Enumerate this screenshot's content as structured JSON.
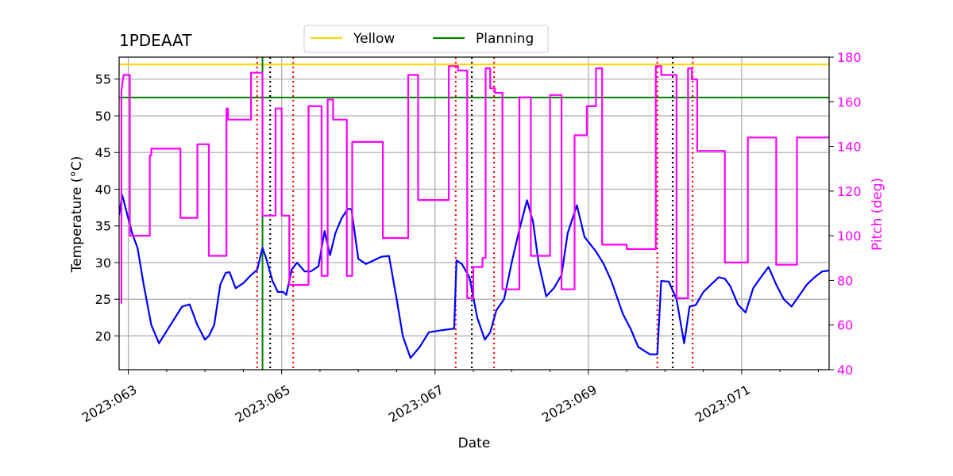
{
  "chart_data": {
    "type": "line",
    "title": "1PDEAAT",
    "xlabel": "Date",
    "ylabel_left": "Temperature ($^\\circ$C)",
    "ylabel_left_display": "Temperature (°C)",
    "ylabel_right": "Pitch (deg)",
    "xlim": [
      62.88,
      72.14
    ],
    "ylim_left": [
      15.4,
      58.0
    ],
    "ylim_right": [
      40,
      180
    ],
    "x_ticks": [
      {
        "value": 63,
        "label": "2023:063"
      },
      {
        "value": 65,
        "label": "2023:065"
      },
      {
        "value": 67,
        "label": "2023:067"
      },
      {
        "value": 69,
        "label": "2023:069"
      },
      {
        "value": 71,
        "label": "2023:071"
      }
    ],
    "y_ticks_left": [
      20,
      25,
      30,
      35,
      40,
      45,
      50,
      55
    ],
    "y_ticks_right": [
      40,
      60,
      80,
      100,
      120,
      140,
      160,
      180
    ],
    "legend": {
      "placement": "top-center",
      "entries": [
        {
          "label": "Yellow",
          "color": "#ffd700"
        },
        {
          "label": "Planning",
          "color": "#008000"
        }
      ]
    },
    "hlines": [
      {
        "name": "Yellow",
        "y": 57.0,
        "color": "#ffd700"
      },
      {
        "name": "Planning",
        "y": 52.5,
        "color": "#008000"
      }
    ],
    "vline_now": {
      "x": 64.75,
      "color": "#008000"
    },
    "vlines_red_dotted": [
      64.68,
      65.15,
      67.27,
      67.77,
      69.9,
      70.36
    ],
    "vlines_black_dotted": [
      64.85,
      67.48,
      70.1
    ],
    "series": [
      {
        "name": "Temperature",
        "axis": "left",
        "color": "#0000ff",
        "x": [
          62.88,
          62.92,
          63.0,
          63.05,
          63.12,
          63.2,
          63.3,
          63.4,
          63.55,
          63.7,
          63.8,
          63.9,
          64.0,
          64.05,
          64.12,
          64.2,
          64.27,
          64.32,
          64.4,
          64.5,
          64.6,
          64.68,
          64.75,
          64.8,
          64.88,
          64.95,
          65.02,
          65.06,
          65.13,
          65.2,
          65.3,
          65.38,
          65.48,
          65.56,
          65.63,
          65.7,
          65.78,
          65.86,
          65.91,
          66.0,
          66.1,
          66.2,
          66.3,
          66.4,
          66.5,
          66.58,
          66.68,
          66.8,
          66.92,
          67.1,
          67.25,
          67.28,
          67.35,
          67.45,
          67.55,
          67.65,
          67.72,
          67.8,
          67.9,
          68.0,
          68.1,
          68.2,
          68.28,
          68.35,
          68.45,
          68.55,
          68.65,
          68.73,
          68.85,
          68.95,
          69.1,
          69.2,
          69.3,
          69.45,
          69.55,
          69.65,
          69.8,
          69.9,
          69.95,
          70.05,
          70.15,
          70.25,
          70.32,
          70.4,
          70.5,
          70.6,
          70.7,
          70.78,
          70.85,
          70.95,
          71.05,
          71.15,
          71.25,
          71.35,
          71.45,
          71.55,
          71.65,
          71.75,
          71.85,
          71.95,
          72.05,
          72.14
        ],
        "y": [
          36.5,
          39.2,
          36.0,
          34.0,
          32.0,
          27.0,
          21.5,
          19.0,
          21.5,
          24.0,
          24.3,
          21.5,
          19.5,
          20.0,
          21.5,
          27.0,
          28.6,
          28.7,
          26.5,
          27.2,
          28.3,
          29.0,
          32.0,
          30.5,
          27.5,
          26.0,
          26.0,
          25.6,
          29.0,
          30.0,
          28.8,
          28.8,
          29.5,
          34.3,
          31.0,
          34.0,
          36.0,
          37.3,
          37.3,
          30.5,
          29.8,
          30.3,
          30.8,
          30.9,
          25.0,
          20.0,
          17.0,
          18.5,
          20.5,
          20.8,
          21.0,
          30.3,
          29.8,
          28.0,
          22.5,
          19.5,
          20.5,
          23.5,
          25.0,
          30.0,
          34.5,
          38.5,
          35.5,
          30.0,
          25.4,
          26.5,
          28.3,
          34.0,
          37.8,
          33.5,
          31.5,
          29.8,
          27.5,
          23.0,
          21.0,
          18.5,
          17.5,
          17.5,
          27.5,
          27.4,
          25.0,
          19.0,
          24.0,
          24.2,
          26.0,
          27.0,
          28.0,
          27.8,
          26.8,
          24.3,
          23.2,
          26.5,
          28.0,
          29.4,
          27.0,
          25.0,
          24.0,
          25.5,
          27.0,
          28.0,
          28.8,
          28.9
        ]
      },
      {
        "name": "Pitch",
        "axis": "right",
        "color": "#ff00ff",
        "x": [
          62.9,
          62.91,
          62.91,
          62.93,
          62.94,
          62.97,
          62.97,
          63.02,
          63.02,
          63.28,
          63.28,
          63.3,
          63.3,
          63.68,
          63.68,
          63.9,
          63.9,
          64.05,
          64.05,
          64.28,
          64.28,
          64.3,
          64.3,
          64.6,
          64.6,
          64.65,
          64.65,
          64.75,
          64.75,
          64.92,
          64.92,
          65.0,
          65.0,
          65.1,
          65.1,
          65.35,
          65.35,
          65.52,
          65.52,
          65.6,
          65.6,
          65.67,
          65.67,
          65.85,
          65.85,
          65.92,
          65.92,
          66.32,
          66.32,
          66.65,
          66.65,
          66.78,
          66.78,
          67.18,
          67.18,
          67.3,
          67.3,
          67.42,
          67.42,
          67.5,
          67.5,
          67.62,
          67.62,
          67.66,
          67.66,
          67.72,
          67.72,
          67.78,
          67.78,
          67.88,
          67.88,
          68.1,
          68.1,
          68.25,
          68.25,
          68.5,
          68.5,
          68.65,
          68.65,
          68.82,
          68.82,
          68.98,
          68.98,
          69.1,
          69.1,
          69.18,
          69.18,
          69.5,
          69.5,
          69.88,
          69.88,
          69.95,
          69.95,
          70.15,
          70.15,
          70.3,
          70.3,
          70.35,
          70.35,
          70.42,
          70.42,
          70.78,
          70.78,
          71.08,
          71.08,
          71.45,
          71.45,
          71.72,
          71.72,
          72.14
        ],
        "y": [
          70,
          70,
          165,
          170,
          172,
          172,
          172,
          172,
          100,
          100,
          136,
          136,
          139,
          139,
          108,
          108,
          141,
          141,
          91,
          91,
          157,
          157,
          152,
          152,
          173,
          173,
          173,
          173,
          109,
          109,
          157,
          157,
          109,
          109,
          78,
          78,
          158,
          158,
          82,
          82,
          161,
          161,
          152,
          152,
          82,
          82,
          142,
          142,
          99,
          99,
          172,
          172,
          116,
          116,
          176,
          176,
          174,
          174,
          72,
          72,
          86,
          86,
          90,
          90,
          175,
          175,
          166,
          166,
          164,
          164,
          76,
          76,
          162,
          162,
          91,
          91,
          163,
          163,
          76,
          76,
          145,
          145,
          158,
          158,
          175,
          175,
          96,
          96,
          94,
          94,
          176,
          176,
          172,
          172,
          72,
          72,
          175,
          175,
          170,
          170,
          138,
          138,
          88,
          88,
          144,
          144,
          87,
          87,
          144,
          144
        ]
      }
    ]
  }
}
